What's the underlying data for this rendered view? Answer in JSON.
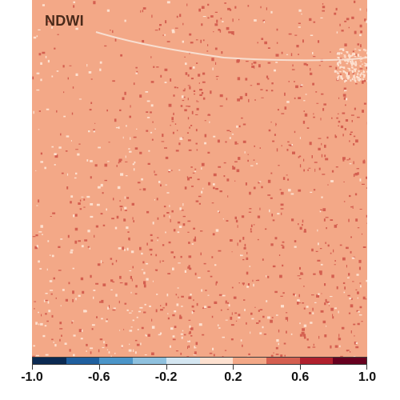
{
  "map": {
    "title": "NDWI",
    "colors": {
      "base": "#f3a887",
      "dark_patch": "#d45f50",
      "light_patch": "#fde0cf",
      "road": "#f7e3d8"
    }
  },
  "legend": {
    "segments": [
      "#0b2a52",
      "#1f5f9e",
      "#4b95c8",
      "#8fc1de",
      "#d4e6f1",
      "#fde0cf",
      "#f3a887",
      "#d45f50",
      "#b0202d",
      "#67001f"
    ],
    "ticks": [
      "-1.0",
      "-0.6",
      "-0.2",
      "0.2",
      "0.6",
      "1.0"
    ],
    "tick_values": [
      -1.0,
      -0.6,
      -0.2,
      0.2,
      0.6,
      1.0
    ],
    "range": [
      -1.0,
      1.0
    ]
  }
}
